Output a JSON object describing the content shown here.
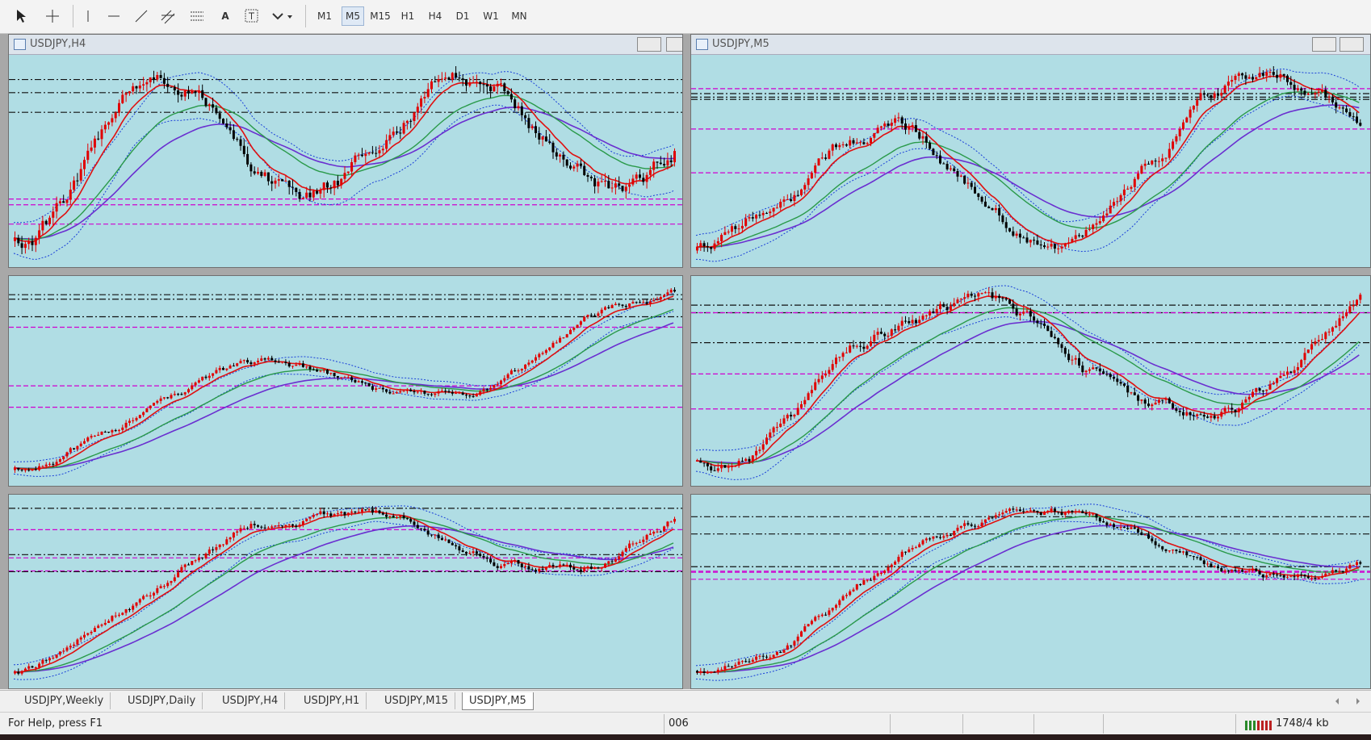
{
  "toolbar": {
    "text_tool": "A",
    "timeframes": [
      "M1",
      "M5",
      "M15",
      "H1",
      "H4",
      "D1",
      "W1",
      "MN"
    ]
  },
  "windows": [
    {
      "title": "USDJPY,H4"
    },
    {
      "title": "USDJPY,M5"
    }
  ],
  "tabs": [
    "USDJPY,Weekly",
    "USDJPY,Daily",
    "USDJPY,H4",
    "USDJPY,H1",
    "USDJPY,M15",
    "USDJPY,M5"
  ],
  "status": {
    "help": "For Help, press F1",
    "field": "006",
    "memory": "1748/4 kb"
  }
}
